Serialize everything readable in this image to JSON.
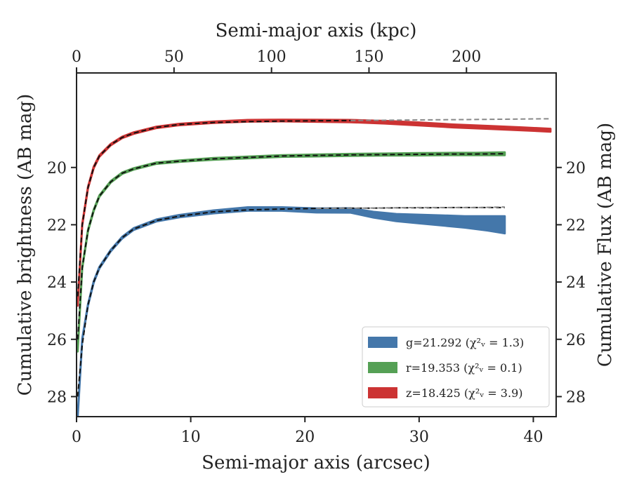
{
  "chart_data": {
    "type": "line",
    "xlabel": "Semi-major axis (arcsec)",
    "x2label": "Semi-major axis (kpc)",
    "ylabel": "Cumulative brightness (AB mag)",
    "y2label": "Cumulative Flux (AB mag)",
    "xlim": [
      0,
      42
    ],
    "x2lim": [
      0,
      246
    ],
    "ylim": [
      28.7,
      16.7
    ],
    "x_ticks": [
      "0",
      "10",
      "20",
      "30",
      "40"
    ],
    "x2_ticks": [
      "0",
      "50",
      "100",
      "150",
      "200"
    ],
    "y_ticks": [
      "20",
      "22",
      "24",
      "26",
      "28"
    ],
    "y2_ticks": [
      "20",
      "22",
      "24",
      "26",
      "28"
    ],
    "legend_location": "lower right",
    "series": [
      {
        "name": "g",
        "legend": "g=21.292 (χ²ᵥ = 1.3)",
        "color": "#4477aa",
        "x": [
          0.1,
          0.5,
          1,
          1.5,
          2,
          3,
          4,
          5,
          7,
          9,
          12,
          15,
          18,
          21,
          24,
          26,
          28,
          30,
          32,
          34,
          36,
          37.5
        ],
        "y": [
          28.7,
          26.0,
          24.8,
          24.0,
          23.5,
          22.9,
          22.45,
          22.15,
          21.85,
          21.7,
          21.55,
          21.45,
          21.45,
          21.5,
          21.5,
          21.65,
          21.75,
          21.8,
          21.85,
          21.9,
          21.95,
          22.0
        ],
        "width": [
          0.05,
          0.05,
          0.05,
          0.05,
          0.05,
          0.05,
          0.06,
          0.06,
          0.07,
          0.08,
          0.1,
          0.12,
          0.12,
          0.14,
          0.15,
          0.2,
          0.25,
          0.3,
          0.35,
          0.4,
          0.5,
          0.6
        ]
      },
      {
        "name": "g_model",
        "color": "#111111",
        "dashed": true,
        "x": [
          0.1,
          0.5,
          1,
          1.5,
          2,
          3,
          4,
          5,
          7,
          9,
          12,
          15,
          18,
          21,
          24,
          26,
          28,
          30,
          33,
          35,
          37.5
        ],
        "y": [
          28.0,
          26.2,
          24.8,
          24.0,
          23.5,
          22.9,
          22.45,
          22.15,
          21.85,
          21.7,
          21.55,
          21.48,
          21.45,
          21.43,
          21.42,
          21.42,
          21.41,
          21.41,
          21.4,
          21.4,
          21.4
        ]
      },
      {
        "name": "r",
        "legend": "r=19.353 (χ²ᵥ = 0.1)",
        "color": "#55a055",
        "x": [
          0.1,
          0.5,
          1,
          1.5,
          2,
          3,
          4,
          5,
          7,
          9,
          12,
          15,
          18,
          21,
          24,
          27,
          30,
          33,
          35,
          37.5
        ],
        "y": [
          26.4,
          23.5,
          22.2,
          21.5,
          21.0,
          20.5,
          20.2,
          20.05,
          19.85,
          19.78,
          19.7,
          19.65,
          19.6,
          19.58,
          19.56,
          19.55,
          19.54,
          19.53,
          19.53,
          19.52
        ],
        "width": [
          0.05,
          0.05,
          0.05,
          0.05,
          0.05,
          0.05,
          0.05,
          0.05,
          0.05,
          0.05,
          0.06,
          0.06,
          0.06,
          0.07,
          0.07,
          0.07,
          0.08,
          0.08,
          0.08,
          0.1
        ]
      },
      {
        "name": "r_model",
        "color": "#111111",
        "dashed": true,
        "x": [
          0.1,
          0.5,
          1,
          1.5,
          2,
          3,
          4,
          5,
          7,
          9,
          12,
          15,
          18,
          21,
          24,
          27,
          30,
          33,
          35,
          37.5
        ],
        "y": [
          26.0,
          23.5,
          22.2,
          21.5,
          21.0,
          20.5,
          20.2,
          20.05,
          19.85,
          19.78,
          19.7,
          19.65,
          19.6,
          19.58,
          19.56,
          19.55,
          19.54,
          19.53,
          19.53,
          19.52
        ]
      },
      {
        "name": "z",
        "legend": "z=18.425 (χ²ᵥ = 3.9)",
        "color": "#cc3333",
        "x": [
          0.1,
          0.5,
          1,
          1.5,
          2,
          3,
          4,
          5,
          7,
          9,
          12,
          15,
          18,
          21,
          24,
          27,
          30,
          33,
          36,
          39,
          41.5
        ],
        "y": [
          24.8,
          22.0,
          20.7,
          20.0,
          19.6,
          19.2,
          18.95,
          18.8,
          18.6,
          18.5,
          18.42,
          18.37,
          18.36,
          18.37,
          18.38,
          18.42,
          18.48,
          18.55,
          18.6,
          18.65,
          18.7
        ],
        "width": [
          0.05,
          0.05,
          0.05,
          0.05,
          0.05,
          0.05,
          0.05,
          0.05,
          0.05,
          0.05,
          0.05,
          0.06,
          0.06,
          0.07,
          0.08,
          0.09,
          0.1,
          0.1,
          0.1,
          0.1,
          0.1
        ]
      },
      {
        "name": "z_model",
        "color": "#111111",
        "dashed": true,
        "x": [
          0.1,
          0.5,
          1,
          1.5,
          2,
          3,
          4,
          5,
          7,
          9,
          12,
          15,
          18,
          21,
          24
        ],
        "y": [
          24.5,
          22.0,
          20.7,
          20.0,
          19.6,
          19.2,
          18.95,
          18.8,
          18.6,
          18.5,
          18.43,
          18.4,
          18.38,
          18.37,
          18.36
        ]
      },
      {
        "name": "z_extension",
        "color": "#888888",
        "dashed": true,
        "x": [
          24,
          30,
          36,
          41.5
        ],
        "y": [
          18.36,
          18.34,
          18.32,
          18.3
        ]
      },
      {
        "name": "g_extension",
        "color": "#888888",
        "dashed": true,
        "x": [
          21,
          25,
          30,
          35,
          37.5
        ],
        "y": [
          21.43,
          21.42,
          21.4,
          21.4,
          21.38
        ]
      }
    ]
  }
}
